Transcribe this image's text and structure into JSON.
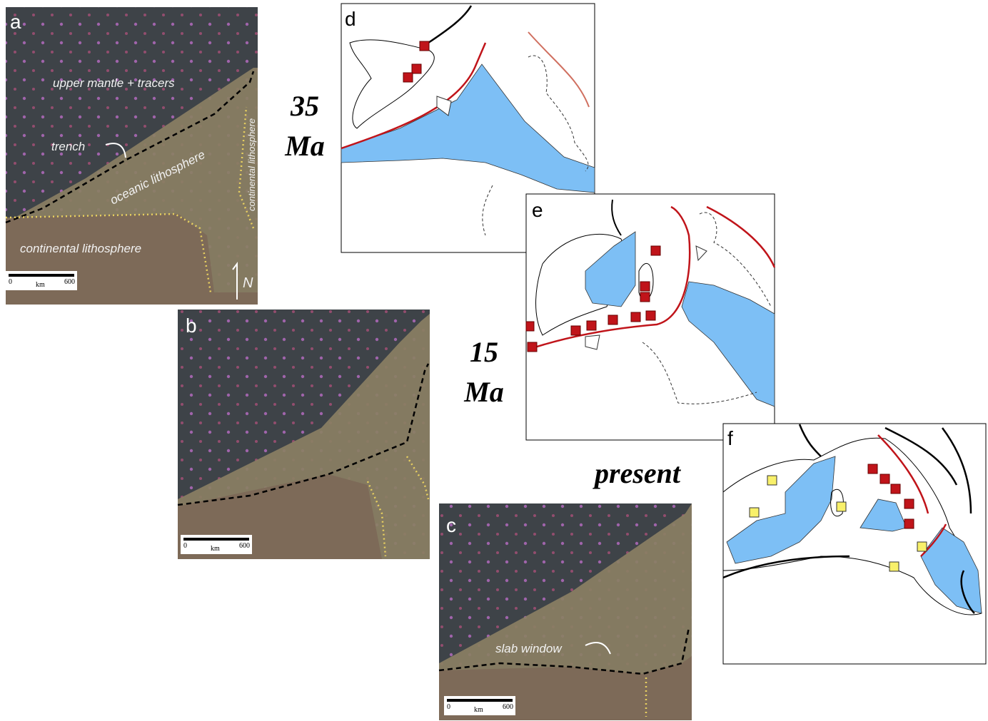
{
  "panels": [
    {
      "label": "a",
      "annotations": [
        "upper mantle + tracers",
        "trench",
        "oceanic lithosphere",
        "continental lithosphere",
        "continental lithosphere"
      ],
      "north": "N",
      "scale": {
        "start": 0,
        "unit": "km",
        "end": 600
      }
    },
    {
      "label": "b",
      "scale": {
        "start": 0,
        "unit": "km",
        "end": 600
      }
    },
    {
      "label": "c",
      "annotations": [
        "slab window"
      ],
      "scale": {
        "start": 0,
        "unit": "km",
        "end": 600
      }
    }
  ],
  "maps": [
    {
      "label": "d"
    },
    {
      "label": "e"
    },
    {
      "label": "f"
    }
  ],
  "ages": [
    {
      "value": "35",
      "unit": "Ma"
    },
    {
      "value": "15",
      "unit": "Ma"
    },
    {
      "value": "present"
    }
  ]
}
